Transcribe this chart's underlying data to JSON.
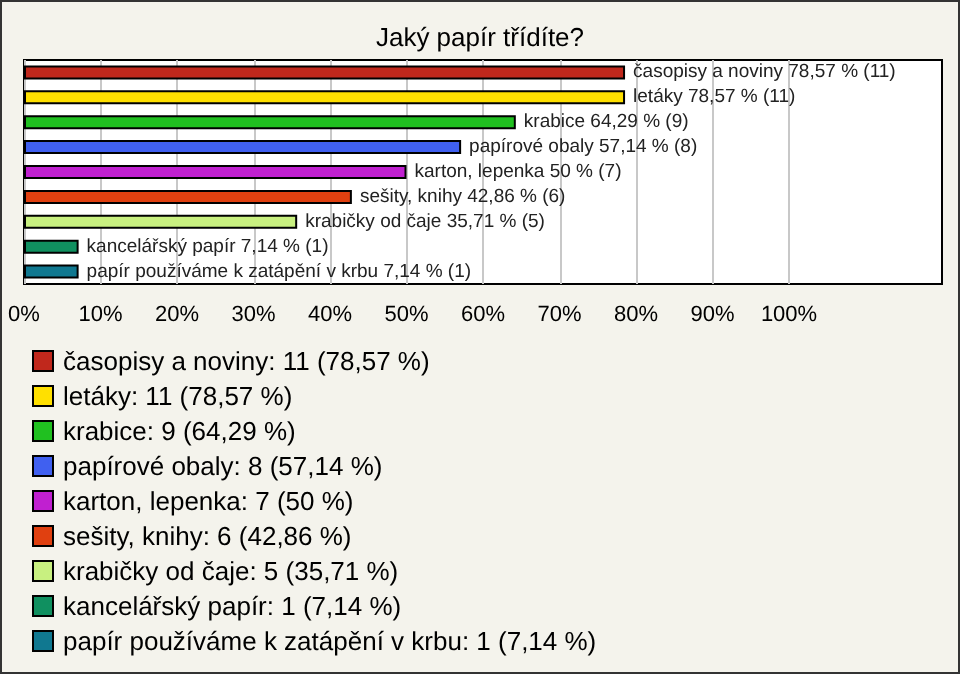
{
  "chart_data": {
    "type": "bar",
    "orientation": "horizontal",
    "title": "Jaký papír třídíte?",
    "categories": [
      null,
      null,
      null,
      null,
      null,
      null,
      null,
      null,
      null
    ],
    "series": [
      {
        "name": "časopisy a noviny: 11 (78,57 %)",
        "color": "#c0281c",
        "values": [
          78.57,
          null,
          null,
          null,
          null,
          null,
          null,
          null,
          null
        ],
        "value_labels": [
          "časopisy a noviny 78,57 % (11)",
          null,
          null,
          null,
          null,
          null,
          null,
          null,
          null
        ]
      },
      {
        "name": "letáky: 11 (78,57 %)",
        "color": "#ffe000",
        "values": [
          null,
          78.57,
          null,
          null,
          null,
          null,
          null,
          null,
          null
        ],
        "value_labels": [
          null,
          "letáky 78,57 % (11)",
          null,
          null,
          null,
          null,
          null,
          null,
          null
        ]
      },
      {
        "name": "krabice: 9 (64,29 %)",
        "color": "#20c020",
        "values": [
          null,
          null,
          64.29,
          null,
          null,
          null,
          null,
          null,
          null
        ],
        "value_labels": [
          null,
          null,
          "krabice 64,29 % (9)",
          null,
          null,
          null,
          null,
          null,
          null
        ]
      },
      {
        "name": "papírové obaly: 8 (57,14 %)",
        "color": "#4060f0",
        "values": [
          null,
          null,
          null,
          57.14,
          null,
          null,
          null,
          null,
          null
        ],
        "value_labels": [
          null,
          null,
          null,
          "papírové obaly 57,14 % (8)",
          null,
          null,
          null,
          null,
          null
        ]
      },
      {
        "name": "karton, lepenka: 7 (50 %)",
        "color": "#c020d0",
        "values": [
          null,
          null,
          null,
          null,
          50,
          null,
          null,
          null,
          null
        ],
        "value_labels": [
          null,
          null,
          null,
          null,
          "karton, lepenka 50 % (7)",
          null,
          null,
          null,
          null
        ]
      },
      {
        "name": "sešity, knihy: 6 (42,86 %)",
        "color": "#e04010",
        "values": [
          null,
          null,
          null,
          null,
          null,
          42.86,
          null,
          null,
          null
        ],
        "value_labels": [
          null,
          null,
          null,
          null,
          null,
          "sešity, knihy 42,86 % (6)",
          null,
          null,
          null
        ]
      },
      {
        "name": "krabičky od čaje: 5 (35,71 %)",
        "color": "#c8f080",
        "values": [
          null,
          null,
          null,
          null,
          null,
          null,
          35.71,
          null,
          null
        ],
        "value_labels": [
          null,
          null,
          null,
          null,
          null,
          null,
          "krabičky od čaje 35,71 % (5)",
          null,
          null
        ]
      },
      {
        "name": "kancelářský papír: 1 (7,14 %)",
        "color": "#109060",
        "values": [
          null,
          null,
          null,
          null,
          null,
          null,
          null,
          7.14,
          null
        ],
        "value_labels": [
          null,
          null,
          null,
          null,
          null,
          null,
          null,
          "kancelářský papír 7,14 % (1)",
          null
        ]
      },
      {
        "name": "papír používáme k zatápění v krbu: 1 (7,14 %)",
        "color": "#107890",
        "values": [
          null,
          null,
          null,
          null,
          null,
          null,
          null,
          null,
          7.14
        ],
        "value_labels": [
          null,
          null,
          null,
          null,
          null,
          null,
          null,
          null,
          "papír používáme k zatápění v krbu 7,14 % (1)"
        ]
      }
    ],
    "xlim": [
      0,
      120
    ],
    "xticks": [
      {
        "value": 0,
        "label": "0%"
      },
      {
        "value": 10,
        "label": "10%"
      },
      {
        "value": 20,
        "label": "20%"
      },
      {
        "value": 30,
        "label": "30%"
      },
      {
        "value": 40,
        "label": "40%"
      },
      {
        "value": 50,
        "label": "50%"
      },
      {
        "value": 60,
        "label": "60%"
      },
      {
        "value": 70,
        "label": "70%"
      },
      {
        "value": 80,
        "label": "80%"
      },
      {
        "value": 90,
        "label": "90%"
      },
      {
        "value": 100,
        "label": "100%"
      }
    ],
    "grid": "x",
    "legend": "bottom"
  }
}
